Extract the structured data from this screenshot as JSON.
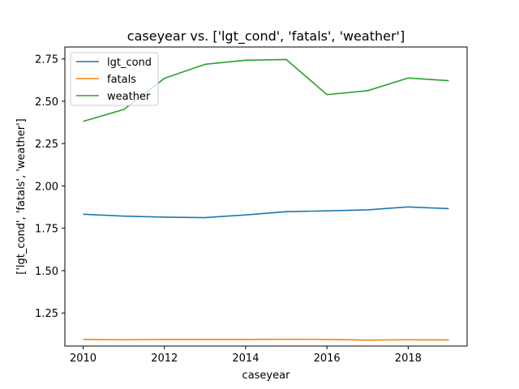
{
  "chart_data": {
    "type": "line",
    "title": "caseyear vs. ['lgt_cond', 'fatals', 'weather']",
    "xlabel": "caseyear",
    "ylabel": "['lgt_cond', 'fatals', 'weather']",
    "x": [
      2010,
      2011,
      2012,
      2013,
      2014,
      2015,
      2016,
      2017,
      2018,
      2019
    ],
    "xticks": [
      2010,
      2012,
      2014,
      2016,
      2018
    ],
    "xtick_labels": [
      "2010",
      "2012",
      "2014",
      "2016",
      "2018"
    ],
    "yticks": [
      1.25,
      1.5,
      1.75,
      2.0,
      2.25,
      2.5,
      2.75
    ],
    "ytick_labels": [
      "1.25",
      "1.50",
      "1.75",
      "2.00",
      "2.25",
      "2.50",
      "2.75"
    ],
    "xlim": [
      2009.55,
      2019.45
    ],
    "ylim": [
      1.055,
      2.82
    ],
    "grid": false,
    "legend_position": "top-left",
    "series": [
      {
        "name": "lgt_cond",
        "color": "#1f77b4",
        "values": [
          1.833,
          1.822,
          1.816,
          1.813,
          1.829,
          1.848,
          1.853,
          1.859,
          1.876,
          1.866
        ]
      },
      {
        "name": "fatals",
        "color": "#ff7f0e",
        "values": [
          1.094,
          1.092,
          1.094,
          1.094,
          1.094,
          1.095,
          1.094,
          1.09,
          1.092,
          1.091
        ]
      },
      {
        "name": "weather",
        "color": "#2ca02c",
        "values": [
          2.381,
          2.451,
          2.635,
          2.718,
          2.742,
          2.746,
          2.539,
          2.562,
          2.637,
          2.621
        ]
      }
    ]
  }
}
